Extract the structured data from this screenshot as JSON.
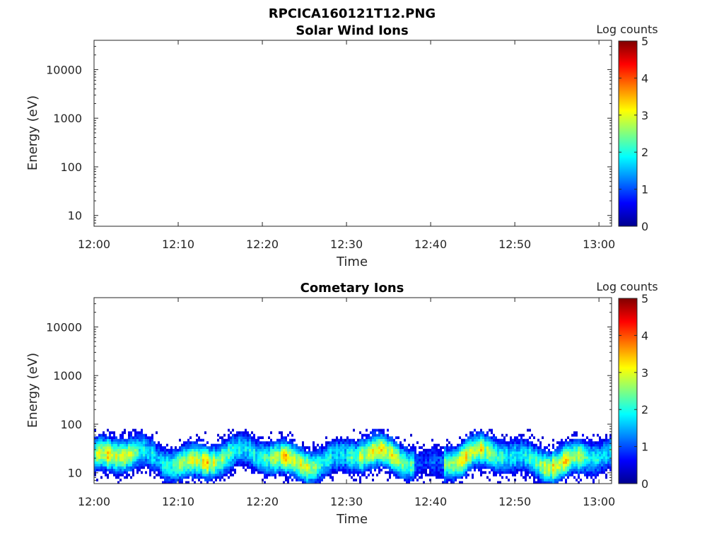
{
  "figure": {
    "title": "RPCICA160121T12.PNG"
  },
  "colors": {
    "axis": "#262626",
    "colormap": [
      "#00008f",
      "#0000ff",
      "#0080ff",
      "#00ffff",
      "#80ff80",
      "#ffff00",
      "#ff8000",
      "#ff0000",
      "#800000"
    ]
  },
  "chart_data": [
    {
      "type": "heatmap",
      "title": "Solar Wind Ions",
      "xlabel": "Time",
      "ylabel": "Energy (eV)",
      "x_tick_labels": [
        "12:00",
        "12:10",
        "12:20",
        "12:30",
        "12:40",
        "12:50",
        "13:00"
      ],
      "y_tick_labels": [
        "10",
        "100",
        "1000",
        "10000"
      ],
      "y_scale": "log",
      "ylim": [
        6,
        40000
      ],
      "colorbar": {
        "label": "Log counts",
        "ticks": [
          "0",
          "1",
          "2",
          "3",
          "4",
          "5"
        ],
        "range": [
          0,
          5
        ],
        "colormap": "jet"
      },
      "data": "no counts shown"
    },
    {
      "type": "heatmap",
      "title": "Cometary Ions",
      "xlabel": "Time",
      "ylabel": "Energy (eV)",
      "x_tick_labels": [
        "12:00",
        "12:10",
        "12:20",
        "12:30",
        "12:40",
        "12:50",
        "13:00"
      ],
      "y_tick_labels": [
        "10",
        "100",
        "1000",
        "10000"
      ],
      "y_scale": "log",
      "ylim": [
        6,
        40000
      ],
      "colorbar": {
        "label": "Log counts",
        "ticks": [
          "0",
          "1",
          "2",
          "3",
          "4",
          "5"
        ],
        "range": [
          0,
          5
        ],
        "colormap": "jet"
      },
      "band": {
        "energy_min_eV": 6,
        "energy_max_eV": 80,
        "peak_energy_eV": 20,
        "peak_log_counts": 3.1
      }
    }
  ]
}
